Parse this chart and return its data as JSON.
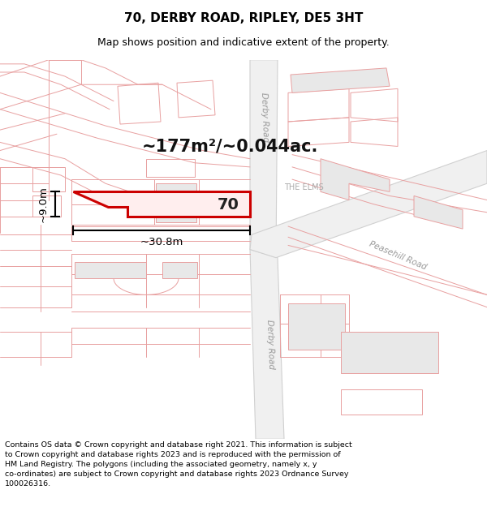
{
  "title": "70, DERBY ROAD, RIPLEY, DE5 3HT",
  "subtitle": "Map shows position and indicative extent of the property.",
  "footer": "Contains OS data © Crown copyright and database right 2021. This information is subject\nto Crown copyright and database rights 2023 and is reproduced with the permission of\nHM Land Registry. The polygons (including the associated geometry, namely x, y\nco-ordinates) are subject to Crown copyright and database rights 2023 Ordnance Survey\n100026316.",
  "title_fontsize": 11,
  "subtitle_fontsize": 9,
  "footer_fontsize": 6.8,
  "map_bg": "#ffffff",
  "road_line_color": "#e8a0a0",
  "road_line_lw": 0.7,
  "plot_line_color": "#e8a0a0",
  "plot_line_lw": 0.7,
  "gray_road_color": "#d0d0d0",
  "highlight_edge": "#cc0000",
  "highlight_fill": "#ffeeee",
  "highlight_lw": 2.2,
  "area_text": "~177m²/~0.044ac.",
  "label_70": "70",
  "dim_width": "~30.8m",
  "dim_height": "~9.0m",
  "street_derby_road": "Derby Road",
  "street_peasehill": "Peasehill Road",
  "street_the_elms": "THE ELMS",
  "street_color": "#999999",
  "street_fontsize": 7.5
}
